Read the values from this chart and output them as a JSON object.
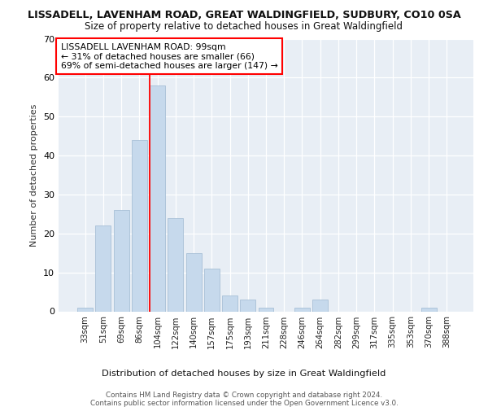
{
  "title1": "LISSADELL, LAVENHAM ROAD, GREAT WALDINGFIELD, SUDBURY, CO10 0SA",
  "title2": "Size of property relative to detached houses in Great Waldingfield",
  "xlabel": "Distribution of detached houses by size in Great Waldingfield",
  "ylabel": "Number of detached properties",
  "categories": [
    "33sqm",
    "51sqm",
    "69sqm",
    "86sqm",
    "104sqm",
    "122sqm",
    "140sqm",
    "157sqm",
    "175sqm",
    "193sqm",
    "211sqm",
    "228sqm",
    "246sqm",
    "264sqm",
    "282sqm",
    "299sqm",
    "317sqm",
    "335sqm",
    "353sqm",
    "370sqm",
    "388sqm"
  ],
  "values": [
    1,
    22,
    26,
    44,
    58,
    24,
    15,
    11,
    4,
    3,
    1,
    0,
    1,
    3,
    0,
    0,
    0,
    0,
    0,
    1,
    0
  ],
  "bar_color": "#c6d9ec",
  "bar_edge_color": "#a8c0d6",
  "red_line_x": 4,
  "annotation_title": "LISSADELL LAVENHAM ROAD: 99sqm",
  "annotation_line2": "← 31% of detached houses are smaller (66)",
  "annotation_line3": "69% of semi-detached houses are larger (147) →",
  "ylim": [
    0,
    70
  ],
  "yticks": [
    0,
    10,
    20,
    30,
    40,
    50,
    60,
    70
  ],
  "footer1": "Contains HM Land Registry data © Crown copyright and database right 2024.",
  "footer2": "Contains public sector information licensed under the Open Government Licence v3.0.",
  "fig_bg_color": "#ffffff",
  "plot_bg_color": "#e8eef5"
}
